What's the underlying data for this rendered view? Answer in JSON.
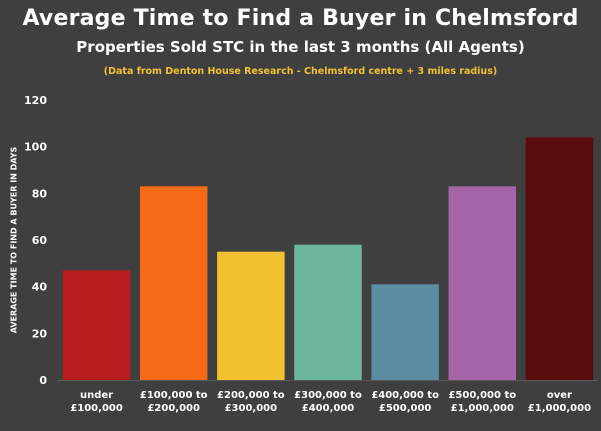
{
  "chart_data": {
    "type": "bar",
    "title": "Average Time to Find a Buyer in Chelmsford",
    "subtitle": "Properties Sold STC in the last 3 months (All Agents)",
    "note": "(Data from Denton House Research - Chelmsford centre + 3 miles radius)",
    "xlabel": "",
    "ylabel": "AVERAGE TIME TO FIND A BUYER IN DAYS",
    "ylim": [
      0,
      120
    ],
    "yticks": [
      0,
      20,
      40,
      60,
      80,
      100,
      120
    ],
    "grid": false,
    "categories": [
      [
        "under",
        "£100,000"
      ],
      [
        "£100,000 to",
        "£200,000"
      ],
      [
        "£200,000 to",
        "£300,000"
      ],
      [
        "£300,000 to",
        "£400,000"
      ],
      [
        "£400,000 to",
        "£500,000"
      ],
      [
        "£500,000 to",
        "£1,000,000"
      ],
      [
        "over",
        "£1,000,000"
      ]
    ],
    "values": [
      47,
      83,
      55,
      58,
      41,
      83,
      104
    ],
    "colors": [
      "#b81c1c",
      "#f56a17",
      "#f1c12f",
      "#6db89c",
      "#5b8ca2",
      "#a565a8",
      "#5a0c0c"
    ]
  }
}
